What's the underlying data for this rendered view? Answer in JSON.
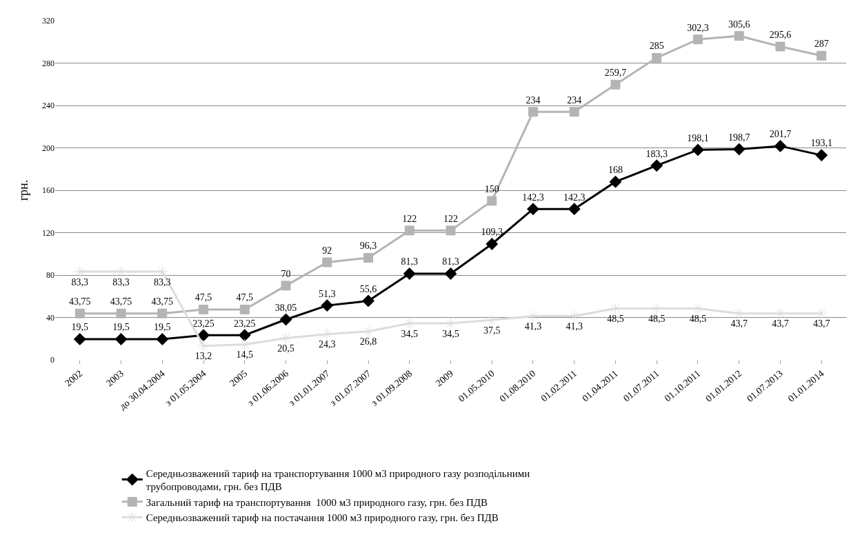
{
  "chart_data": {
    "type": "line",
    "ylabel": "грн.",
    "categories": [
      "2002",
      "2003",
      "до 30.04.2004",
      "з 01.05.2004",
      "2005",
      "з 01.06.2006",
      "з 01.01.2007",
      "з 01.07.2007",
      "з 01.09.2008",
      "2009",
      "01.05.2010",
      "01.08.2010",
      "01.02.2011",
      "01.04.2011",
      "01.07.2011",
      "01.10.2011",
      "01.01.2012",
      "01.07.2013",
      "01.01.2014"
    ],
    "series": [
      {
        "name": "Середньозважений тариф на транспортування 1000 м3 природного газу розподільними трубопроводами, грн. без ПДВ",
        "color": "#000000",
        "marker": "diamond",
        "values": [
          19.5,
          19.5,
          19.5,
          23.25,
          23.25,
          38.05,
          51.3,
          55.6,
          81.3,
          81.3,
          109.3,
          142.3,
          142.3,
          168,
          183.3,
          198.1,
          198.7,
          201.7,
          193.1
        ],
        "value_labels": [
          "19,5",
          "19,5",
          "19,5",
          "23,25",
          "23,25",
          "38,05",
          "51,3",
          "55,6",
          "81,3",
          "81,3",
          "109,3",
          "142,3",
          "142,3",
          "168",
          "183,3",
          "198,1",
          "198,7",
          "201,7",
          "193,1"
        ]
      },
      {
        "name": "Загальний тариф на транспортування  1000 м3 природного газу, грн. без ПДВ",
        "color": "#b4b4b4",
        "marker": "square",
        "values": [
          43.75,
          43.75,
          43.75,
          47.5,
          47.5,
          70,
          92,
          96.3,
          122,
          122,
          150,
          234,
          234,
          259.7,
          285,
          302.3,
          305.6,
          295.6,
          287
        ],
        "value_labels": [
          "43,75",
          "43,75",
          "43,75",
          "47,5",
          "47,5",
          "70",
          "92",
          "96,3",
          "122",
          "122",
          "150",
          "234",
          "234",
          "259,7",
          "285",
          "302,3",
          "305,6",
          "295,6",
          "287"
        ]
      },
      {
        "name": "Середньозважений тариф на постачання 1000 м3 природного газу, грн. без ПДВ",
        "color": "#dcdcdc",
        "marker": "cross",
        "values": [
          83.3,
          83.3,
          83.3,
          13.2,
          14.5,
          20.5,
          24.3,
          26.8,
          34.5,
          34.5,
          37.5,
          41.3,
          41.3,
          48.5,
          48.5,
          48.5,
          43.7,
          43.7,
          43.7
        ],
        "value_labels": [
          "83,3",
          "83,3",
          "83,3",
          "13,2",
          "14,5",
          "20,5",
          "24,3",
          "26,8",
          "34,5",
          "34,5",
          "37,5",
          "41,3",
          "41,3",
          "48,5",
          "48,5",
          "48,5",
          "43,7",
          "43,7",
          "43,7"
        ]
      }
    ],
    "ylim": [
      0,
      320
    ],
    "yticks": [
      0,
      40,
      80,
      120,
      160,
      200,
      240,
      280,
      320
    ],
    "grid": "y",
    "legend": "bottom",
    "line_style": "solid"
  }
}
